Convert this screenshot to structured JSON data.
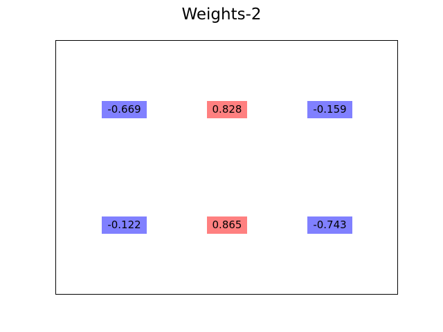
{
  "chart_data": {
    "type": "table",
    "title": "Weights-2",
    "rows": 2,
    "columns": 3,
    "values": [
      [
        -0.669,
        0.828,
        -0.159
      ],
      [
        -0.122,
        0.865,
        -0.743
      ]
    ],
    "labels": [
      [
        "-0.669",
        "0.828",
        "-0.159"
      ],
      [
        "-0.122",
        "0.865",
        "-0.743"
      ]
    ],
    "colors": {
      "negative": "#8080ff",
      "positive": "#ff8080"
    },
    "axes_visible": false,
    "grid": false
  }
}
